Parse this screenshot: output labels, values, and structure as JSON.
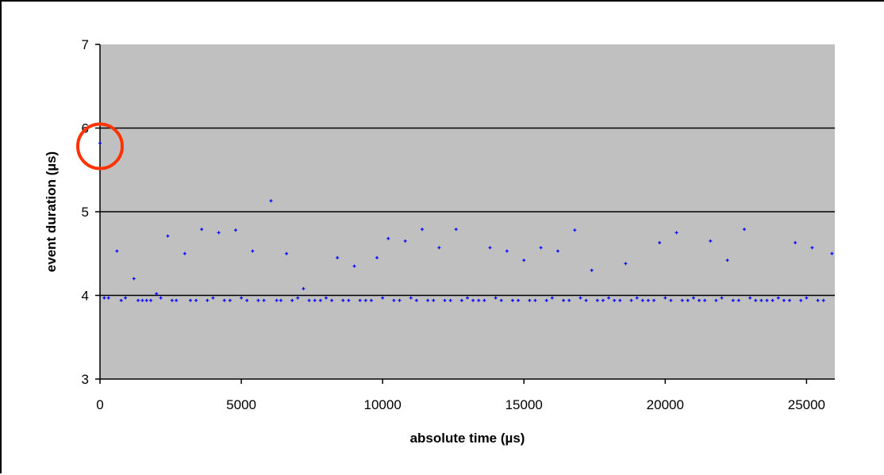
{
  "chart_data": {
    "type": "scatter",
    "title": "",
    "xlabel": "absolute time (µs)",
    "ylabel": "event duration (µs)",
    "xlim": [
      0,
      26000
    ],
    "ylim": [
      3,
      7
    ],
    "x_ticks": [
      "0",
      "5000",
      "10000",
      "15000",
      "20000",
      "25000"
    ],
    "y_ticks": [
      "3",
      "4",
      "5",
      "6",
      "7"
    ],
    "grid": "horizontal",
    "plot_background": "#c0c0c0",
    "marker_color": "#0000ff",
    "gridline_color": "#000000",
    "highlight": {
      "shape": "circle",
      "color": "#ff3300",
      "x": 0,
      "y": 5.82
    },
    "series": [
      {
        "values": [
          [
            0,
            5.82
          ],
          [
            150,
            3.97
          ],
          [
            300,
            3.97
          ],
          [
            600,
            4.53
          ],
          [
            750,
            3.94
          ],
          [
            900,
            3.97
          ],
          [
            1200,
            4.2
          ],
          [
            1350,
            3.94
          ],
          [
            1500,
            3.94
          ],
          [
            1650,
            3.94
          ],
          [
            1800,
            3.94
          ],
          [
            2000,
            4.02
          ],
          [
            2150,
            3.97
          ],
          [
            2400,
            4.71
          ],
          [
            2550,
            3.94
          ],
          [
            2700,
            3.94
          ],
          [
            3000,
            4.5
          ],
          [
            3200,
            3.94
          ],
          [
            3400,
            3.94
          ],
          [
            3600,
            4.79
          ],
          [
            3800,
            3.94
          ],
          [
            4000,
            3.97
          ],
          [
            4200,
            4.75
          ],
          [
            4400,
            3.94
          ],
          [
            4600,
            3.94
          ],
          [
            4800,
            4.78
          ],
          [
            5000,
            3.97
          ],
          [
            5200,
            3.94
          ],
          [
            5400,
            4.53
          ],
          [
            5600,
            3.94
          ],
          [
            5800,
            3.94
          ],
          [
            6050,
            5.13
          ],
          [
            6250,
            3.94
          ],
          [
            6400,
            3.94
          ],
          [
            6600,
            4.5
          ],
          [
            6800,
            3.94
          ],
          [
            7000,
            3.97
          ],
          [
            7200,
            4.08
          ],
          [
            7400,
            3.94
          ],
          [
            7600,
            3.94
          ],
          [
            7800,
            3.94
          ],
          [
            8000,
            3.97
          ],
          [
            8200,
            3.94
          ],
          [
            8400,
            4.45
          ],
          [
            8600,
            3.94
          ],
          [
            8800,
            3.94
          ],
          [
            9000,
            4.35
          ],
          [
            9200,
            3.94
          ],
          [
            9400,
            3.94
          ],
          [
            9600,
            3.94
          ],
          [
            9800,
            4.45
          ],
          [
            10000,
            3.97
          ],
          [
            10200,
            4.68
          ],
          [
            10400,
            3.94
          ],
          [
            10600,
            3.94
          ],
          [
            10800,
            4.65
          ],
          [
            11000,
            3.97
          ],
          [
            11200,
            3.94
          ],
          [
            11400,
            4.79
          ],
          [
            11600,
            3.94
          ],
          [
            11800,
            3.94
          ],
          [
            12000,
            4.57
          ],
          [
            12200,
            3.94
          ],
          [
            12400,
            3.94
          ],
          [
            12600,
            4.79
          ],
          [
            12800,
            3.94
          ],
          [
            13000,
            3.97
          ],
          [
            13200,
            3.94
          ],
          [
            13400,
            3.94
          ],
          [
            13600,
            3.94
          ],
          [
            13800,
            4.57
          ],
          [
            14000,
            3.97
          ],
          [
            14200,
            3.94
          ],
          [
            14400,
            4.53
          ],
          [
            14600,
            3.94
          ],
          [
            14800,
            3.94
          ],
          [
            15000,
            4.42
          ],
          [
            15200,
            3.94
          ],
          [
            15400,
            3.94
          ],
          [
            15600,
            4.57
          ],
          [
            15800,
            3.94
          ],
          [
            16000,
            3.97
          ],
          [
            16200,
            4.53
          ],
          [
            16400,
            3.94
          ],
          [
            16600,
            3.94
          ],
          [
            16800,
            4.78
          ],
          [
            17000,
            3.97
          ],
          [
            17200,
            3.94
          ],
          [
            17400,
            4.3
          ],
          [
            17600,
            3.94
          ],
          [
            17800,
            3.94
          ],
          [
            18000,
            3.97
          ],
          [
            18200,
            3.94
          ],
          [
            18400,
            3.94
          ],
          [
            18600,
            4.38
          ],
          [
            18800,
            3.94
          ],
          [
            19000,
            3.97
          ],
          [
            19200,
            3.94
          ],
          [
            19400,
            3.94
          ],
          [
            19600,
            3.94
          ],
          [
            19800,
            4.63
          ],
          [
            20000,
            3.97
          ],
          [
            20200,
            3.94
          ],
          [
            20400,
            4.75
          ],
          [
            20600,
            3.94
          ],
          [
            20800,
            3.94
          ],
          [
            21000,
            3.97
          ],
          [
            21200,
            3.94
          ],
          [
            21400,
            3.94
          ],
          [
            21600,
            4.65
          ],
          [
            21800,
            3.94
          ],
          [
            22000,
            3.97
          ],
          [
            22200,
            4.42
          ],
          [
            22400,
            3.94
          ],
          [
            22600,
            3.94
          ],
          [
            22800,
            4.79
          ],
          [
            23000,
            3.97
          ],
          [
            23200,
            3.94
          ],
          [
            23400,
            3.94
          ],
          [
            23600,
            3.94
          ],
          [
            23800,
            3.94
          ],
          [
            24000,
            3.97
          ],
          [
            24200,
            3.94
          ],
          [
            24400,
            3.94
          ],
          [
            24600,
            4.63
          ],
          [
            24800,
            3.94
          ],
          [
            25000,
            3.97
          ],
          [
            25200,
            4.57
          ],
          [
            25400,
            3.94
          ],
          [
            25600,
            3.94
          ],
          [
            25900,
            4.5
          ]
        ]
      }
    ]
  }
}
